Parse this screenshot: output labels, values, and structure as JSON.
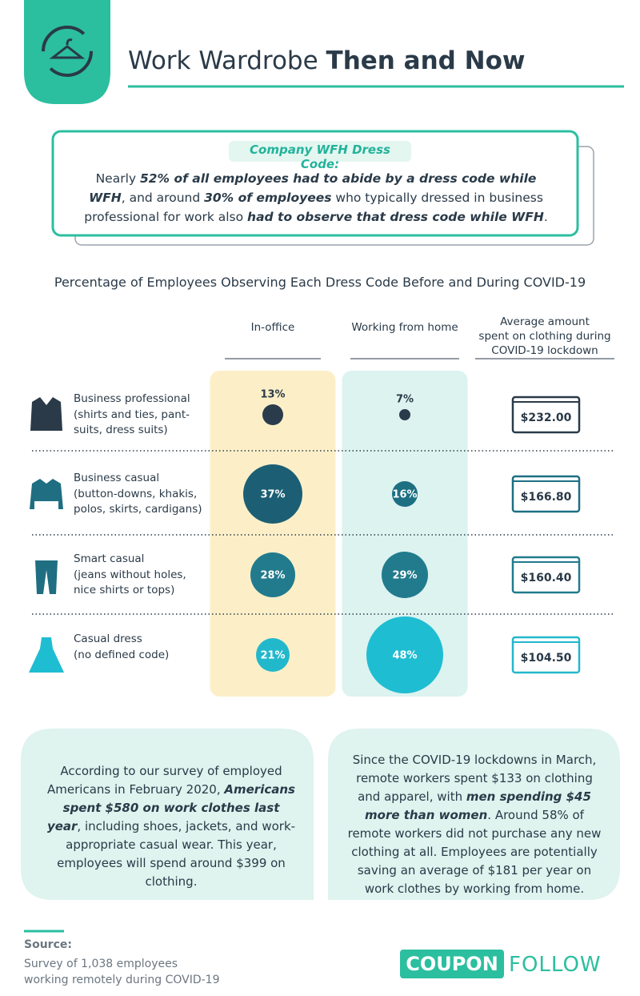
{
  "header": {
    "title_light": "Work Wardrobe",
    "title_bold": "Then and Now"
  },
  "callout": {
    "heading": "Company WFH Dress Code:",
    "segments": [
      {
        "text": "Nearly "
      },
      {
        "text": "52% of all employees had to abide by a dress code while WFH",
        "emphasis": true
      },
      {
        "text": ", and around "
      },
      {
        "text": "30% of employees",
        "emphasis": true
      },
      {
        "text": " who typically dressed in business professional for work also "
      },
      {
        "text": "had to observe that dress code while WFH",
        "emphasis": true
      },
      {
        "text": "."
      }
    ]
  },
  "chart_data": {
    "type": "bubble",
    "title": "Percentage of Employees Observing Each Dress Code Before and During COVID-19",
    "categories": [
      "Business professional\n(shirts and ties, pant-\nsuits, dress suits)",
      "Business casual\n(button-downs, khakis,\npolos, skirts, cardigans)",
      "Smart casual\n(jeans without holes,\nnice shirts or tops)",
      "Casual dress\n(no defined code)"
    ],
    "series": [
      {
        "name": "In-office",
        "values": [
          13,
          37,
          28,
          21
        ],
        "value_labels": [
          "13%",
          "37%",
          "28%",
          "21%"
        ],
        "colors": [
          "#2a3b4c",
          "#1c5f74",
          "#217b8d",
          "#22b8cc"
        ],
        "background": "#fcefc8"
      },
      {
        "name": "Working from home",
        "values": [
          7,
          16,
          29,
          48
        ],
        "value_labels": [
          "7%",
          "16%",
          "29%",
          "48%"
        ],
        "colors": [
          "#2a3b4c",
          "#1d6f82",
          "#217b8d",
          "#1fbdd2"
        ],
        "background": "#dcf3f0"
      }
    ],
    "spending": {
      "name": "Average amount\nspent on clothing during\nCOVID-19 lockdown",
      "values": [
        "$232.00",
        "$166.80",
        "$160.40",
        "$104.50"
      ]
    }
  },
  "panels": [
    {
      "segments": [
        {
          "text": "According to our survey of employed Americans in February 2020, "
        },
        {
          "text": "Americans spent $580 on work clothes last year",
          "emphasis": true
        },
        {
          "text": ", including shoes, jackets, and work-appropriate casual wear. This year, employees will spend around $399 on clothing."
        }
      ]
    },
    {
      "segments": [
        {
          "text": "Since the COVID-19 lockdowns in March, remote workers spent $133 on clothing and apparel, with "
        },
        {
          "text": "men spending $45 more than women",
          "emphasis": true
        },
        {
          "text": ". Around 58% of remote workers did not purchase any new clothing at all. Employees are potentially saving an average of $181 per year on work clothes by working from home."
        }
      ]
    }
  ],
  "source": {
    "label": "Source:",
    "text": "Survey of 1,038 employees working remotely during COVID-19"
  },
  "logo": {
    "left": "COUPON",
    "right": "FOLLOW"
  }
}
